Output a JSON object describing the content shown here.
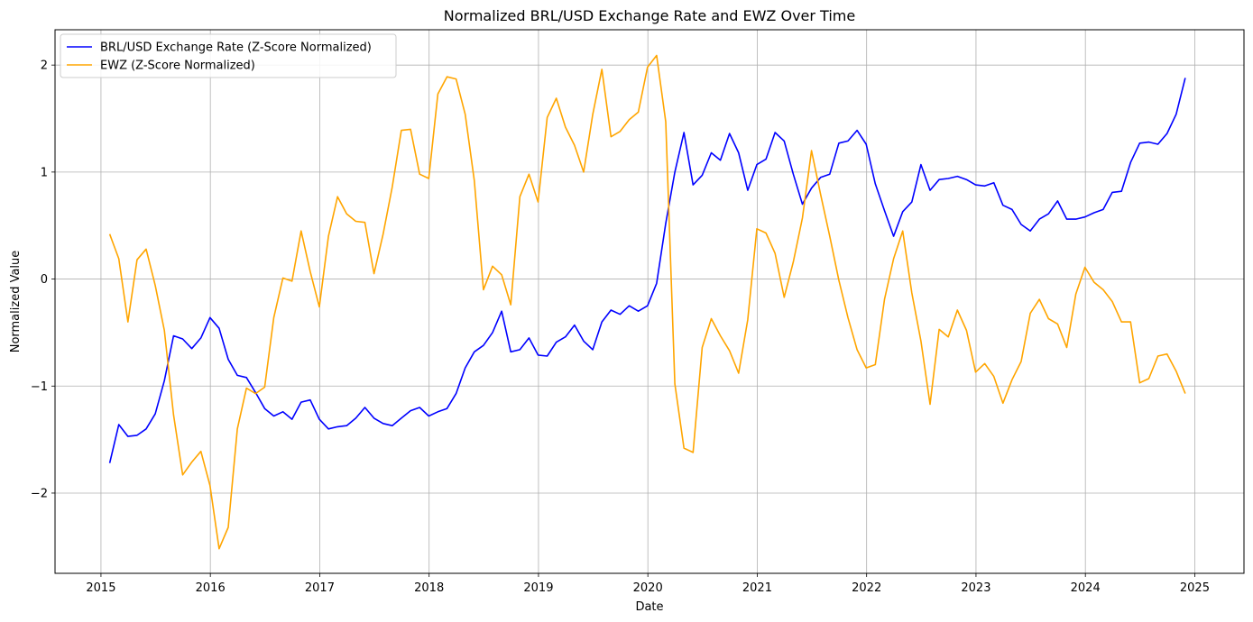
{
  "chart_data": {
    "type": "line",
    "title": "Normalized BRL/USD Exchange Rate and EWZ Over Time",
    "xlabel": "Date",
    "ylabel": "Normalized Value",
    "xlim": [
      2014.58,
      2025.45
    ],
    "ylim": [
      -2.75,
      2.33
    ],
    "x_ticks": [
      2015,
      2016,
      2017,
      2018,
      2019,
      2020,
      2021,
      2022,
      2023,
      2024,
      2025
    ],
    "x_tick_labels": [
      "2015",
      "2016",
      "2017",
      "2018",
      "2019",
      "2020",
      "2021",
      "2022",
      "2023",
      "2024",
      "2025"
    ],
    "y_ticks": [
      -2,
      -1,
      0,
      1,
      2
    ],
    "y_tick_labels": [
      "−2",
      "−1",
      "0",
      "1",
      "2"
    ],
    "grid": true,
    "legend_position": "top-left",
    "x_start": 2015.08,
    "x_step": 0.08333,
    "series": [
      {
        "name": "BRL/USD Exchange Rate (Z-Score Normalized)",
        "color": "#0000ff",
        "values": [
          -1.72,
          -1.36,
          -1.47,
          -1.46,
          -1.4,
          -1.26,
          -0.95,
          -0.53,
          -0.56,
          -0.65,
          -0.55,
          -0.36,
          -0.46,
          -0.75,
          -0.9,
          -0.92,
          -1.06,
          -1.21,
          -1.28,
          -1.24,
          -1.31,
          -1.15,
          -1.13,
          -1.31,
          -1.4,
          -1.38,
          -1.37,
          -1.3,
          -1.2,
          -1.3,
          -1.35,
          -1.37,
          -1.3,
          -1.23,
          -1.2,
          -1.28,
          -1.24,
          -1.21,
          -1.07,
          -0.83,
          -0.68,
          -0.62,
          -0.5,
          -0.3,
          -0.68,
          -0.66,
          -0.55,
          -0.71,
          -0.72,
          -0.59,
          -0.54,
          -0.43,
          -0.58,
          -0.66,
          -0.4,
          -0.29,
          -0.33,
          -0.25,
          -0.3,
          -0.25,
          -0.04,
          0.52,
          1.0,
          1.37,
          0.88,
          0.97,
          1.18,
          1.11,
          1.36,
          1.18,
          0.83,
          1.07,
          1.12,
          1.37,
          1.29,
          0.98,
          0.7,
          0.85,
          0.95,
          0.98,
          1.27,
          1.29,
          1.39,
          1.26,
          0.89,
          0.64,
          0.4,
          0.63,
          0.72,
          1.07,
          0.83,
          0.93,
          0.94,
          0.96,
          0.93,
          0.88,
          0.87,
          0.9,
          0.69,
          0.65,
          0.51,
          0.45,
          0.56,
          0.61,
          0.73,
          0.56,
          0.56,
          0.58,
          0.62,
          0.65,
          0.81,
          0.82,
          1.09,
          1.27,
          1.28,
          1.26,
          1.36,
          1.54,
          1.88
        ]
      },
      {
        "name": "EWZ (Z-Score Normalized)",
        "color": "#ffa500",
        "values": [
          0.42,
          0.19,
          -0.4,
          0.18,
          0.28,
          -0.06,
          -0.48,
          -1.27,
          -1.83,
          -1.71,
          -1.61,
          -1.93,
          -2.52,
          -2.32,
          -1.4,
          -1.02,
          -1.07,
          -1.01,
          -0.36,
          0.01,
          -0.02,
          0.45,
          0.07,
          -0.26,
          0.4,
          0.77,
          0.61,
          0.54,
          0.53,
          0.05,
          0.42,
          0.86,
          1.39,
          1.4,
          0.98,
          0.94,
          1.73,
          1.89,
          1.87,
          1.54,
          0.92,
          -0.1,
          0.12,
          0.04,
          -0.24,
          0.77,
          0.98,
          0.72,
          1.51,
          1.69,
          1.42,
          1.25,
          1.0,
          1.54,
          1.96,
          1.33,
          1.38,
          1.49,
          1.56,
          1.98,
          2.09,
          1.47,
          -0.98,
          -1.58,
          -1.62,
          -0.64,
          -0.37,
          -0.53,
          -0.67,
          -0.88,
          -0.38,
          0.47,
          0.43,
          0.24,
          -0.17,
          0.16,
          0.57,
          1.2,
          0.79,
          0.4,
          -0.01,
          -0.36,
          -0.66,
          -0.83,
          -0.8,
          -0.19,
          0.19,
          0.45,
          -0.13,
          -0.58,
          -1.17,
          -0.47,
          -0.54,
          -0.29,
          -0.48,
          -0.87,
          -0.79,
          -0.91,
          -1.16,
          -0.94,
          -0.77,
          -0.32,
          -0.19,
          -0.37,
          -0.42,
          -0.64,
          -0.14,
          0.11,
          -0.03,
          -0.1,
          -0.21,
          -0.4,
          -0.4,
          -0.97,
          -0.93,
          -0.72,
          -0.7,
          -0.86,
          -1.07
        ]
      }
    ]
  }
}
